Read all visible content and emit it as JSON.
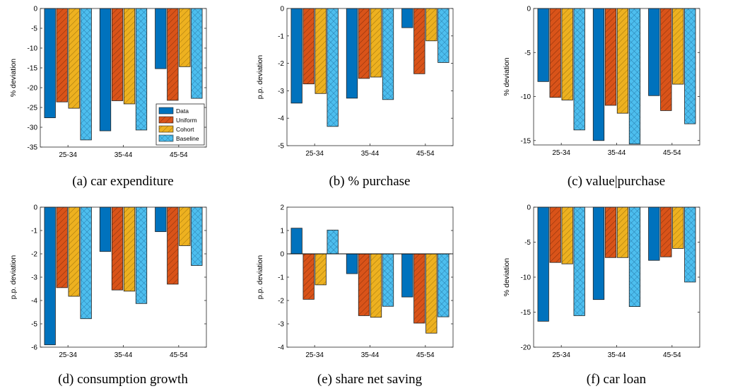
{
  "legend": {
    "entries": [
      "Data",
      "Uniform",
      "Cohort",
      "Baseline"
    ]
  },
  "series_style": [
    {
      "name": "Data",
      "color": "#0072BD",
      "pattern": "solid"
    },
    {
      "name": "Uniform",
      "color": "#D95319",
      "pattern": "diagonal-lines"
    },
    {
      "name": "Cohort",
      "color": "#EDB120",
      "pattern": "diagonal-lines"
    },
    {
      "name": "Baseline",
      "color": "#4DBEEE",
      "pattern": "crosshatch"
    }
  ],
  "chart_data": [
    {
      "type": "bar",
      "caption": "(a) car expenditure",
      "ylabel": "% deviation",
      "categories": [
        "25-34",
        "35-44",
        "45-54"
      ],
      "ylim": [
        -35,
        0
      ],
      "yticks": [
        0,
        -5,
        -10,
        -15,
        -20,
        -25,
        -30,
        -35
      ],
      "legend_position": "bottom-right",
      "series": [
        {
          "name": "Data",
          "values": [
            -27.6,
            -30.9,
            -15.2
          ]
        },
        {
          "name": "Uniform",
          "values": [
            -23.6,
            -23.3,
            -23.2
          ]
        },
        {
          "name": "Cohort",
          "values": [
            -25.2,
            -24.1,
            -14.7
          ]
        },
        {
          "name": "Baseline",
          "values": [
            -33.2,
            -30.7,
            -22.7
          ]
        }
      ]
    },
    {
      "type": "bar",
      "caption": "(b) % purchase",
      "ylabel": "p.p. deviation",
      "categories": [
        "25-34",
        "35-44",
        "45-54"
      ],
      "ylim": [
        -5,
        0
      ],
      "yticks": [
        0,
        -1,
        -2,
        -3,
        -4,
        -5
      ],
      "series": [
        {
          "name": "Data",
          "values": [
            -3.45,
            -3.27,
            -0.7
          ]
        },
        {
          "name": "Uniform",
          "values": [
            -2.75,
            -2.55,
            -2.38
          ]
        },
        {
          "name": "Cohort",
          "values": [
            -3.1,
            -2.5,
            -1.18
          ]
        },
        {
          "name": "Baseline",
          "values": [
            -4.3,
            -3.32,
            -1.97
          ]
        }
      ]
    },
    {
      "type": "bar",
      "caption": "(c) value|purchase",
      "ylabel": "% deviation",
      "categories": [
        "25-34",
        "35-44",
        "45-54"
      ],
      "ylim": [
        -15.5,
        0
      ],
      "yticks": [
        0,
        -5,
        -10,
        -15
      ],
      "series": [
        {
          "name": "Data",
          "values": [
            -8.3,
            -15.0,
            -9.9
          ]
        },
        {
          "name": "Uniform",
          "values": [
            -10.1,
            -11.0,
            -11.6
          ]
        },
        {
          "name": "Cohort",
          "values": [
            -10.4,
            -11.9,
            -8.6
          ]
        },
        {
          "name": "Baseline",
          "values": [
            -13.8,
            -15.4,
            -13.1
          ]
        }
      ]
    },
    {
      "type": "bar",
      "caption": "(d) consumption growth",
      "ylabel": "p.p. deviation",
      "categories": [
        "25-34",
        "35-44",
        "45-54"
      ],
      "ylim": [
        -6,
        0
      ],
      "yticks": [
        0,
        -1,
        -2,
        -3,
        -4,
        -5,
        -6
      ],
      "series": [
        {
          "name": "Data",
          "values": [
            -5.9,
            -1.9,
            -1.05
          ]
        },
        {
          "name": "Uniform",
          "values": [
            -3.45,
            -3.55,
            -3.3
          ]
        },
        {
          "name": "Cohort",
          "values": [
            -3.82,
            -3.6,
            -1.65
          ]
        },
        {
          "name": "Baseline",
          "values": [
            -4.78,
            -4.13,
            -2.5
          ]
        }
      ]
    },
    {
      "type": "bar",
      "caption": "(e) share net saving",
      "ylabel": "p.p. deviation",
      "categories": [
        "25-34",
        "35-44",
        "45-54"
      ],
      "ylim": [
        -4,
        2
      ],
      "yticks": [
        2,
        1,
        0,
        -1,
        -2,
        -3,
        -4
      ],
      "series": [
        {
          "name": "Data",
          "values": [
            1.1,
            -0.85,
            -1.85
          ]
        },
        {
          "name": "Uniform",
          "values": [
            -1.95,
            -2.65,
            -2.97
          ]
        },
        {
          "name": "Cohort",
          "values": [
            -1.33,
            -2.72,
            -3.4
          ]
        },
        {
          "name": "Baseline",
          "values": [
            1.02,
            -2.25,
            -2.7
          ]
        }
      ]
    },
    {
      "type": "bar",
      "caption": "(f) car loan",
      "ylabel": "% deviation",
      "categories": [
        "25-34",
        "35-44",
        "45-54"
      ],
      "ylim": [
        -20,
        0
      ],
      "yticks": [
        0,
        -5,
        -10,
        -15,
        -20
      ],
      "series": [
        {
          "name": "Data",
          "values": [
            -16.3,
            -13.2,
            -7.6
          ]
        },
        {
          "name": "Uniform",
          "values": [
            -7.9,
            -7.2,
            -7.1
          ]
        },
        {
          "name": "Cohort",
          "values": [
            -8.1,
            -7.2,
            -5.9
          ]
        },
        {
          "name": "Baseline",
          "values": [
            -15.5,
            -14.2,
            -10.7
          ]
        }
      ]
    }
  ]
}
